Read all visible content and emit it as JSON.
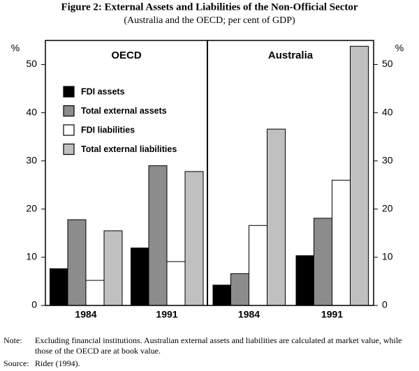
{
  "chart_data": {
    "type": "bar",
    "title": "Figure 2: External Assets and Liabilities of the Non-Official Sector",
    "subtitle": "(Australia and the OECD; per cent of GDP)",
    "y_label": "%",
    "ylim": [
      0,
      55
    ],
    "yticks": [
      0,
      10,
      20,
      30,
      40,
      50
    ],
    "legend": {
      "position": "top-left",
      "entries": [
        {
          "name": "FDI assets",
          "color": "#000000"
        },
        {
          "name": "Total external assets",
          "color": "#8c8c8c"
        },
        {
          "name": "FDI liabilities",
          "color": "#ffffff"
        },
        {
          "name": "Total external liabilities",
          "color": "#c0c0c0"
        }
      ]
    },
    "panels": [
      {
        "title": "OECD",
        "categories": [
          "1984",
          "1991"
        ],
        "series": [
          {
            "values": [
              7.7,
              12.0
            ]
          },
          {
            "values": [
              17.8,
              29.0
            ]
          },
          {
            "values": [
              5.2,
              9.1
            ]
          },
          {
            "values": [
              15.5,
              27.8
            ]
          }
        ]
      },
      {
        "title": "Australia",
        "categories": [
          "1984",
          "1991"
        ],
        "series": [
          {
            "values": [
              4.3,
              10.4
            ]
          },
          {
            "values": [
              6.6,
              18.1
            ]
          },
          {
            "values": [
              16.6,
              26.0
            ]
          },
          {
            "values": [
              36.6,
              53.8
            ]
          }
        ]
      }
    ]
  },
  "note_label": "Note:",
  "note": "Excluding financial institutions. Australian external assets and liabilities are calculated at market value, while those of the OECD are at book value.",
  "source_label": "Source:",
  "source": "Rider (1994)."
}
